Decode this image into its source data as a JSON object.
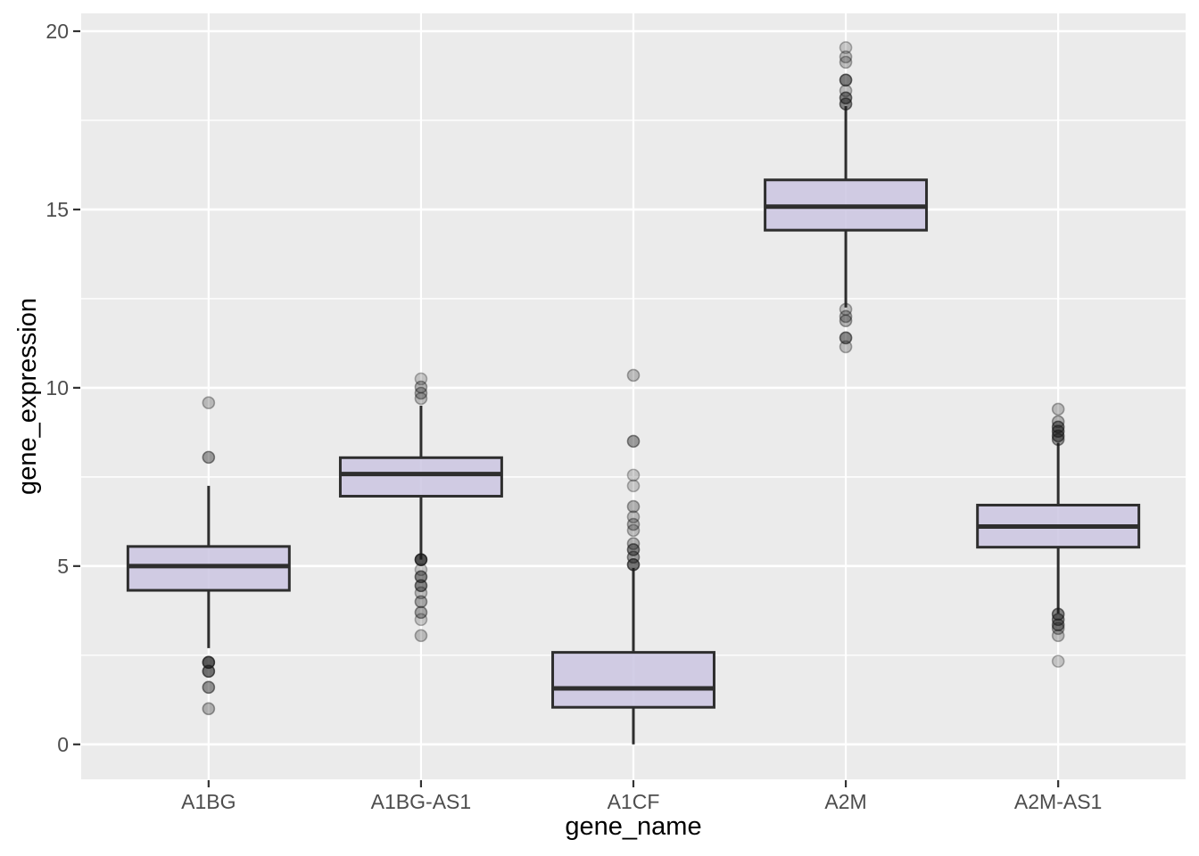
{
  "figure": {
    "kind": "ggplot-boxplot",
    "background": "#FFFFFF"
  },
  "chart_data": {
    "type": "boxplot",
    "title": "",
    "xlabel": "gene_name",
    "ylabel": "gene_expression",
    "categories": [
      "A1BG",
      "A1BG-AS1",
      "A1CF",
      "A2M",
      "A2M-AS1"
    ],
    "y_ticks": [
      0,
      5,
      10,
      15,
      20
    ],
    "y_tick_labels": [
      "0",
      "5",
      "10",
      "15",
      "20"
    ],
    "y_minor_ticks": [
      2.5,
      7.5,
      12.5,
      17.5
    ],
    "ylim": [
      -0.98,
      20.5
    ],
    "grid": true,
    "legend": "none",
    "series": [
      {
        "name": "A1BG",
        "whisker_low": 2.7,
        "q1": 4.32,
        "median": 5.0,
        "q3": 5.55,
        "whisker_high": 7.25,
        "outliers": [
          {
            "v": 9.58,
            "a": 0.25
          },
          {
            "v": 8.05,
            "a": 0.4
          },
          {
            "v": 2.3,
            "a": 0.7
          },
          {
            "v": 2.05,
            "a": 0.6
          },
          {
            "v": 1.6,
            "a": 0.45
          },
          {
            "v": 1.0,
            "a": 0.3
          }
        ]
      },
      {
        "name": "A1BG-AS1",
        "whisker_low": 5.18,
        "q1": 6.96,
        "median": 7.58,
        "q3": 8.04,
        "whisker_high": 9.5,
        "outliers": [
          {
            "v": 10.25,
            "a": 0.2
          },
          {
            "v": 10.02,
            "a": 0.3
          },
          {
            "v": 9.85,
            "a": 0.3
          },
          {
            "v": 9.7,
            "a": 0.25
          },
          {
            "v": 5.18,
            "a": 0.75
          },
          {
            "v": 4.9,
            "a": 0.2
          },
          {
            "v": 4.7,
            "a": 0.5
          },
          {
            "v": 4.45,
            "a": 0.5
          },
          {
            "v": 4.25,
            "a": 0.25
          },
          {
            "v": 4.0,
            "a": 0.35
          },
          {
            "v": 3.7,
            "a": 0.35
          },
          {
            "v": 3.5,
            "a": 0.2
          },
          {
            "v": 3.05,
            "a": 0.25
          }
        ]
      },
      {
        "name": "A1CF",
        "whisker_low": 0.0,
        "q1": 1.04,
        "median": 1.57,
        "q3": 2.58,
        "whisker_high": 4.95,
        "outliers": [
          {
            "v": 10.35,
            "a": 0.25
          },
          {
            "v": 8.5,
            "a": 0.4
          },
          {
            "v": 7.55,
            "a": 0.2
          },
          {
            "v": 7.25,
            "a": 0.2
          },
          {
            "v": 6.67,
            "a": 0.3
          },
          {
            "v": 6.38,
            "a": 0.25
          },
          {
            "v": 6.17,
            "a": 0.3
          },
          {
            "v": 6.0,
            "a": 0.25
          },
          {
            "v": 5.63,
            "a": 0.3
          },
          {
            "v": 5.46,
            "a": 0.5
          },
          {
            "v": 5.25,
            "a": 0.4
          },
          {
            "v": 5.04,
            "a": 0.6
          }
        ]
      },
      {
        "name": "A2M",
        "whisker_low": 12.25,
        "q1": 14.42,
        "median": 15.08,
        "q3": 15.83,
        "whisker_high": 17.9,
        "outliers": [
          {
            "v": 19.54,
            "a": 0.2
          },
          {
            "v": 19.28,
            "a": 0.25
          },
          {
            "v": 19.13,
            "a": 0.25
          },
          {
            "v": 18.63,
            "a": 0.55
          },
          {
            "v": 18.33,
            "a": 0.25
          },
          {
            "v": 18.13,
            "a": 0.5
          },
          {
            "v": 17.96,
            "a": 0.5
          },
          {
            "v": 12.2,
            "a": 0.25
          },
          {
            "v": 12.0,
            "a": 0.3
          },
          {
            "v": 11.88,
            "a": 0.3
          },
          {
            "v": 11.4,
            "a": 0.5
          },
          {
            "v": 11.15,
            "a": 0.25
          }
        ]
      },
      {
        "name": "A2M-AS1",
        "whisker_low": 3.67,
        "q1": 5.53,
        "median": 6.11,
        "q3": 6.71,
        "whisker_high": 8.46,
        "outliers": [
          {
            "v": 9.4,
            "a": 0.25
          },
          {
            "v": 9.05,
            "a": 0.3
          },
          {
            "v": 8.9,
            "a": 0.5
          },
          {
            "v": 8.78,
            "a": 0.5
          },
          {
            "v": 8.65,
            "a": 0.5
          },
          {
            "v": 8.55,
            "a": 0.4
          },
          {
            "v": 3.65,
            "a": 0.5
          },
          {
            "v": 3.5,
            "a": 0.45
          },
          {
            "v": 3.35,
            "a": 0.45
          },
          {
            "v": 3.25,
            "a": 0.3
          },
          {
            "v": 3.05,
            "a": 0.25
          },
          {
            "v": 2.33,
            "a": 0.2
          }
        ]
      }
    ],
    "colors": {
      "panel_bg": "#EBEBEB",
      "grid": "#FFFFFF",
      "box_fill": "#CBC5E2",
      "box_fill_opacity": 0.85,
      "box_stroke": "#2E2E2E",
      "outlier": "#1A1A1A",
      "tick_text": "#4D4D4D",
      "axis_title": "#000000",
      "tick_mark": "#333333"
    }
  }
}
